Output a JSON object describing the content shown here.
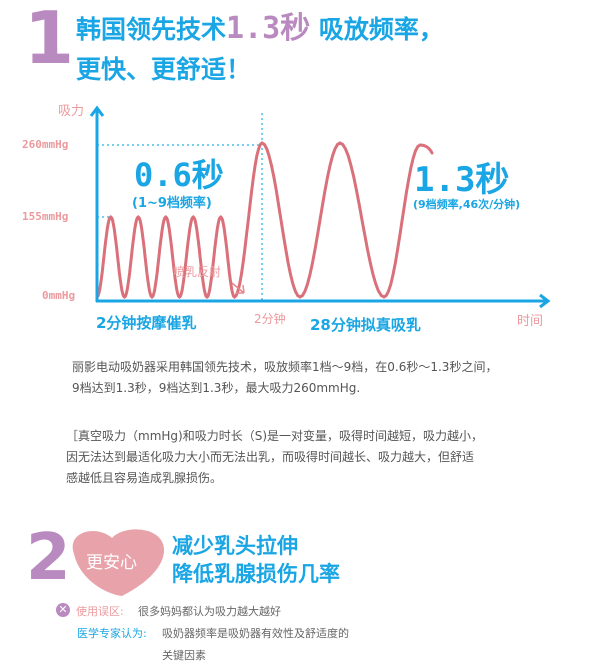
{
  "section1": {
    "number": "1",
    "heading_line1_a": "韩国领先技术",
    "heading_line1_highlight": "1.3秒",
    "heading_line1_b": " 吸放频率，",
    "heading_line2": "更快、更舒适！"
  },
  "diagram": {
    "y_axis_label": "吸力",
    "x_axis_label": "时间",
    "y_ticks": [
      "260mmHg",
      "155mmHg",
      "0mmHg"
    ],
    "left_value": "0.6秒",
    "left_caption": "(1~9档频率)",
    "reflex_label": "喷乳反射",
    "right_value": "1.3秒",
    "right_caption": "(9档频率,46次/分钟)",
    "phase1_label": "2分钟按摩催乳",
    "divider_label": "2分钟",
    "phase2_label": "28分钟拟真吸乳",
    "colors": {
      "axis": "#1aa6e4",
      "wave": "#d9707a",
      "tick_text": "#eb9a9e"
    }
  },
  "description": {
    "paragraph1_line1": "丽影电动吸奶器采用韩国领先技术，吸放频率1档～9档，在0.6秒～1.3秒之间，",
    "paragraph1_line2": "9档达到1.3秒，9档达到1.3秒，最大吸力260mmHg.",
    "paragraph2_line1": "［真空吸力（mmHg)和吸力时长（S)是一对变量，吸得时间越短，吸力越小，",
    "paragraph2_line2": "因无法达到最适化吸力大小而无法出乳，而吸得时间越长、吸力越大，但舒适",
    "paragraph2_line3": "感越低且容易造成乳腺损伤。"
  },
  "section2": {
    "number": "2",
    "badge": "更安心",
    "heading_line1": "减少乳头拉伸",
    "heading_line2": "降低乳腺损伤几率",
    "myth_label": "使用误区:",
    "myth_text": "很多妈妈都认为吸力越大越好",
    "expert_label": "医学专家认为:",
    "expert_text_line1": "吸奶器频率是吸奶器有效性及舒适度的",
    "expert_text_line2": "关键因素"
  }
}
